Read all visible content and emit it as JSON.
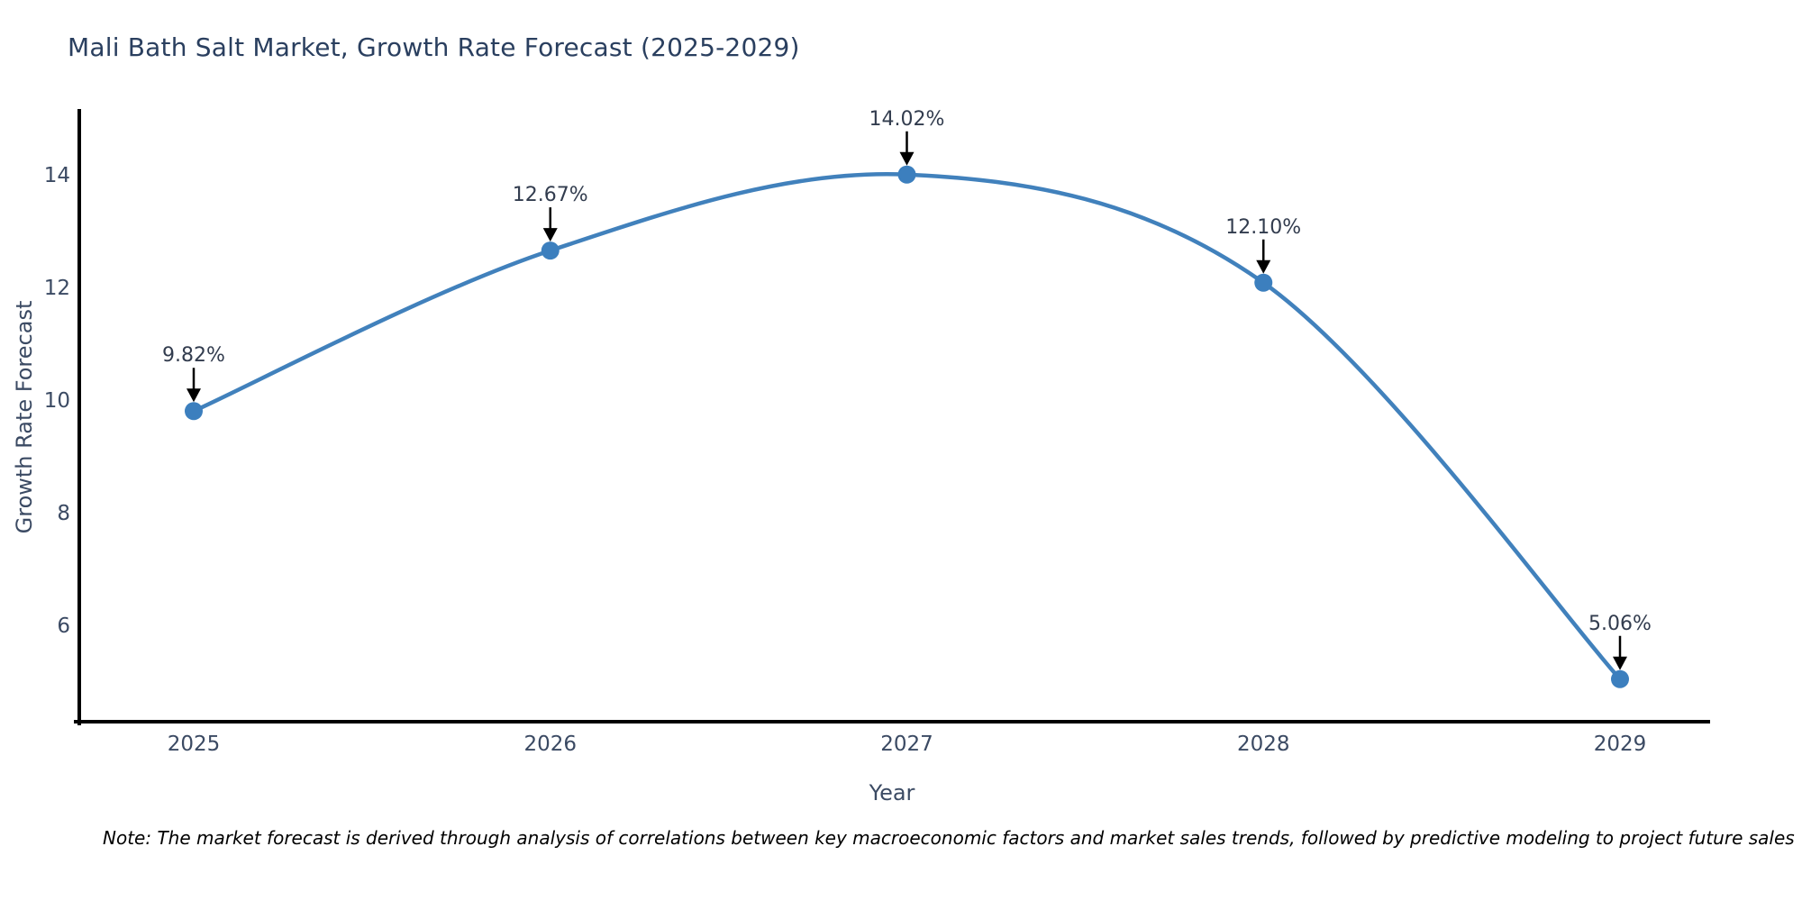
{
  "note": "Note: The market forecast is derived through analysis of correlations between key macroeconomic factors and market sales trends, followed by predictive modeling to project future sales",
  "chart_data": {
    "type": "line",
    "title": "Mali Bath Salt Market, Growth Rate Forecast (2025-2029)",
    "xlabel": "Year",
    "ylabel": "Growth Rate Forecast",
    "x": [
      2025,
      2026,
      2027,
      2028,
      2029
    ],
    "values": [
      9.82,
      12.67,
      14.02,
      12.1,
      5.06
    ],
    "point_labels": [
      "9.82%",
      "12.67%",
      "14.02%",
      "12.10%",
      "5.06%"
    ],
    "yticks": [
      6,
      8,
      10,
      12,
      14
    ],
    "ylim": [
      4.3,
      15.1
    ],
    "line_shape": "spline",
    "grid": false,
    "legend": "none",
    "annotation_style": "value label above point with downward black arrow",
    "colors": {
      "line": "#4181bc",
      "marker": "#3c7fbe",
      "axis": "#000000",
      "title_text": "#2a3f5f",
      "label_text": "#3b4a63",
      "annotation_text": "#323c4e",
      "annotation_arrow": "#000000",
      "note_text": "#000000",
      "background": "#ffffff"
    }
  }
}
